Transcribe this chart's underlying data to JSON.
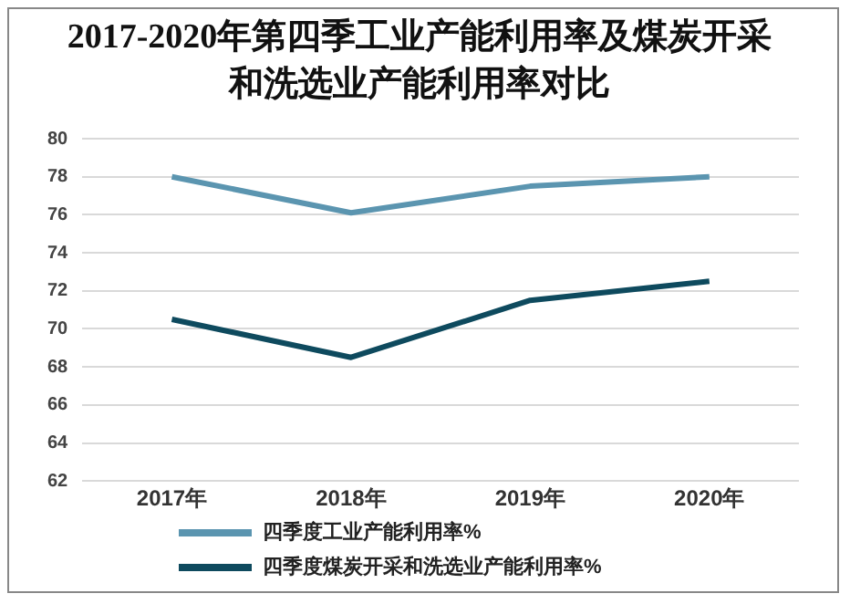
{
  "chart_data": {
    "type": "line",
    "title": "2017-2020年第四季工业产能利用率及煤炭开采和洗选业产能利用率对比",
    "categories": [
      "2017年",
      "2018年",
      "2019年",
      "2020年"
    ],
    "series": [
      {
        "name": "四季度工业产能利用率%",
        "color": "#5b95b0",
        "values": [
          78,
          76.1,
          77.5,
          78
        ]
      },
      {
        "name": "四季度煤炭开采和洗选业产能利用率%",
        "color": "#0e4a5e",
        "values": [
          70.5,
          68.5,
          71.5,
          72.5
        ]
      }
    ],
    "ylim": [
      62,
      80
    ],
    "yticks": [
      62,
      64,
      66,
      68,
      70,
      72,
      74,
      76,
      78,
      80
    ],
    "grid": "y",
    "legend": "bottom left",
    "marker": "none",
    "line_style": "solid"
  }
}
